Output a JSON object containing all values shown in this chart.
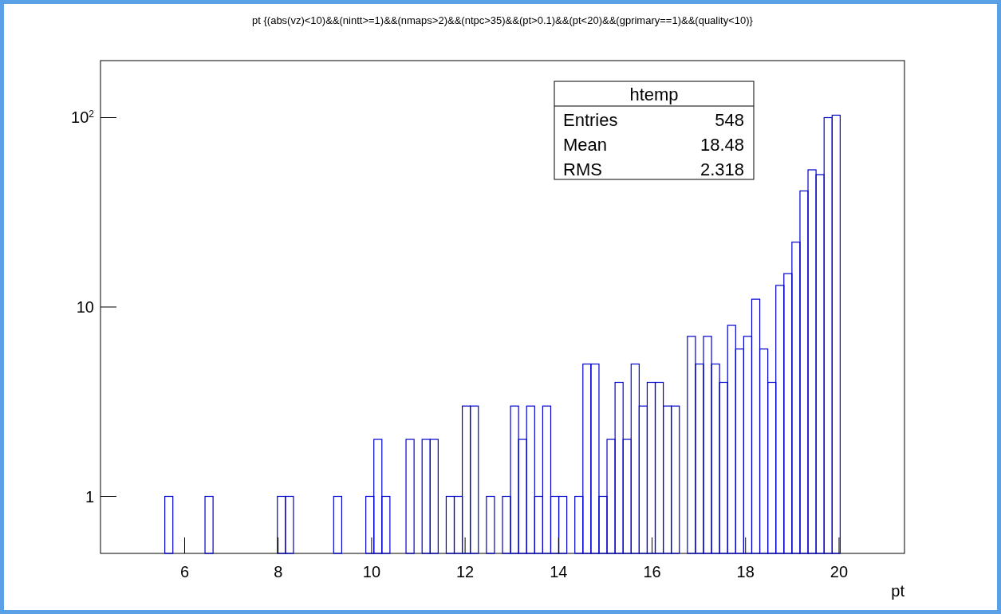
{
  "chart_data": {
    "type": "histogram",
    "title": "pt {(abs(vz)<10)&&(nintt>=1)&&(nmaps>2)&&(ntpc>35)&&(pt>0.1)&&(pt<20)&&(gprimary==1)&&(quality<10)}",
    "xlabel": "pt",
    "log": "y",
    "color": "#0000cc",
    "grid": false,
    "bins": [
      5.576,
      5.748,
      5.92,
      6.092,
      6.264,
      6.436,
      6.608,
      6.78,
      6.952,
      7.124,
      7.296,
      7.468,
      7.64,
      7.812,
      7.984,
      8.156,
      8.328,
      8.5,
      8.672,
      8.844,
      9.016,
      9.188,
      9.36,
      9.532,
      9.704,
      9.876,
      10.048,
      10.22,
      10.392,
      10.564,
      10.736,
      10.908,
      11.08,
      11.252,
      11.424,
      11.596,
      11.768,
      11.94,
      12.112,
      12.284,
      12.456,
      12.628,
      12.8,
      12.972,
      13.144,
      13.316,
      13.488,
      13.66,
      13.832,
      14.004,
      14.176,
      14.348,
      14.52,
      14.692,
      14.864,
      15.036,
      15.208,
      15.38,
      15.552,
      15.724,
      15.896,
      16.068,
      16.24,
      16.412,
      16.584,
      16.756,
      16.928,
      17.1,
      17.272,
      17.444,
      17.616,
      17.788,
      17.96,
      18.132,
      18.304,
      18.476,
      18.648,
      18.82,
      18.992,
      19.164,
      19.336,
      19.508,
      19.68,
      19.852,
      20.024
    ],
    "values": [
      1,
      null,
      null,
      null,
      null,
      1,
      null,
      null,
      null,
      null,
      null,
      null,
      null,
      null,
      1,
      1,
      null,
      null,
      null,
      null,
      null,
      1,
      null,
      null,
      null,
      1,
      2,
      1,
      null,
      null,
      2,
      null,
      2,
      2,
      null,
      1,
      1,
      3,
      3,
      null,
      1,
      null,
      1,
      3,
      2,
      3,
      1,
      3,
      1,
      1,
      null,
      1,
      5,
      5,
      1,
      2,
      4,
      2,
      5,
      3,
      4,
      4,
      3,
      3,
      null,
      7,
      5,
      7,
      5,
      4,
      8,
      6,
      7,
      11,
      6,
      4,
      13,
      15,
      22,
      41,
      53,
      50,
      100,
      103
    ],
    "xlim": [
      4.2,
      21.4
    ],
    "xticks": [
      6,
      8,
      10,
      12,
      14,
      16,
      18,
      20
    ],
    "ylim": [
      0.5,
      200
    ],
    "yticks": [
      1,
      10,
      {
        "value": 100,
        "label": "10$^{2}$"
      }
    ],
    "annotations": [
      "htemp",
      "Entries",
      "548",
      "Mean",
      "18.48",
      "RMS",
      "2.318"
    ]
  }
}
